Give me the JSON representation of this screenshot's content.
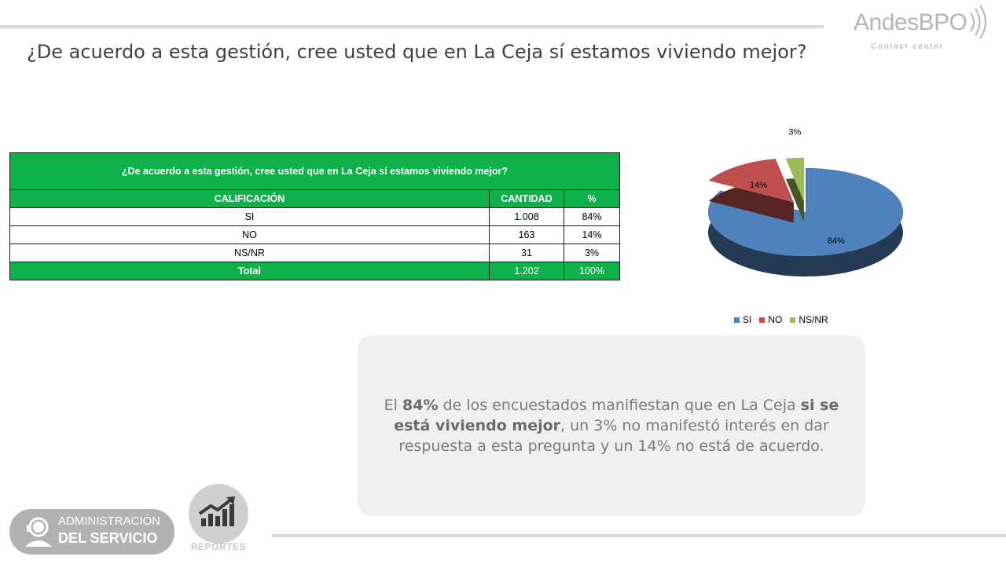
{
  "header": {
    "title": "¿De acuerdo a esta gestión, cree usted que en La Ceja sí estamos viviendo mejor?",
    "logo_text": "AndesBPO",
    "logo_sub": "Contact center"
  },
  "table": {
    "question": "¿De acuerdo a esta gestión, cree usted que en La Ceja sí estamos viviendo mejor?",
    "columns": [
      "CALIFICACIÓN",
      "CANTIDAD",
      "%"
    ],
    "rows": [
      {
        "label": "SI",
        "count": "1.008",
        "pct": "84%"
      },
      {
        "label": "NO",
        "count": "163",
        "pct": "14%"
      },
      {
        "label": "NS/NR",
        "count": "31",
        "pct": "3%"
      }
    ],
    "total": {
      "label": "Total",
      "count": "1.202",
      "pct": "100%"
    }
  },
  "chart_data": {
    "type": "pie",
    "categories": [
      "SI",
      "NO",
      "NS/NR"
    ],
    "values": [
      84,
      14,
      3
    ],
    "data_labels": [
      "84%",
      "14%",
      "3%"
    ],
    "colors": [
      "#4f81bd",
      "#c0504d",
      "#9bbb59"
    ],
    "legend_position": "bottom",
    "style": "3d-exploded"
  },
  "summary": {
    "pre": "El ",
    "b1": "84%",
    "mid": " de los encuestados manifiestan que en La Ceja ",
    "b2": "si  se está viviendo mejor",
    "post": ",   un 3% no manifestó interés en dar respuesta a esta pregunta y un 14%  no está de acuerdo."
  },
  "footer": {
    "admin_line1": "ADMINISTRACIÓN",
    "admin_line2": "DEL SERVICIO",
    "reports_label": "REPORTES"
  }
}
